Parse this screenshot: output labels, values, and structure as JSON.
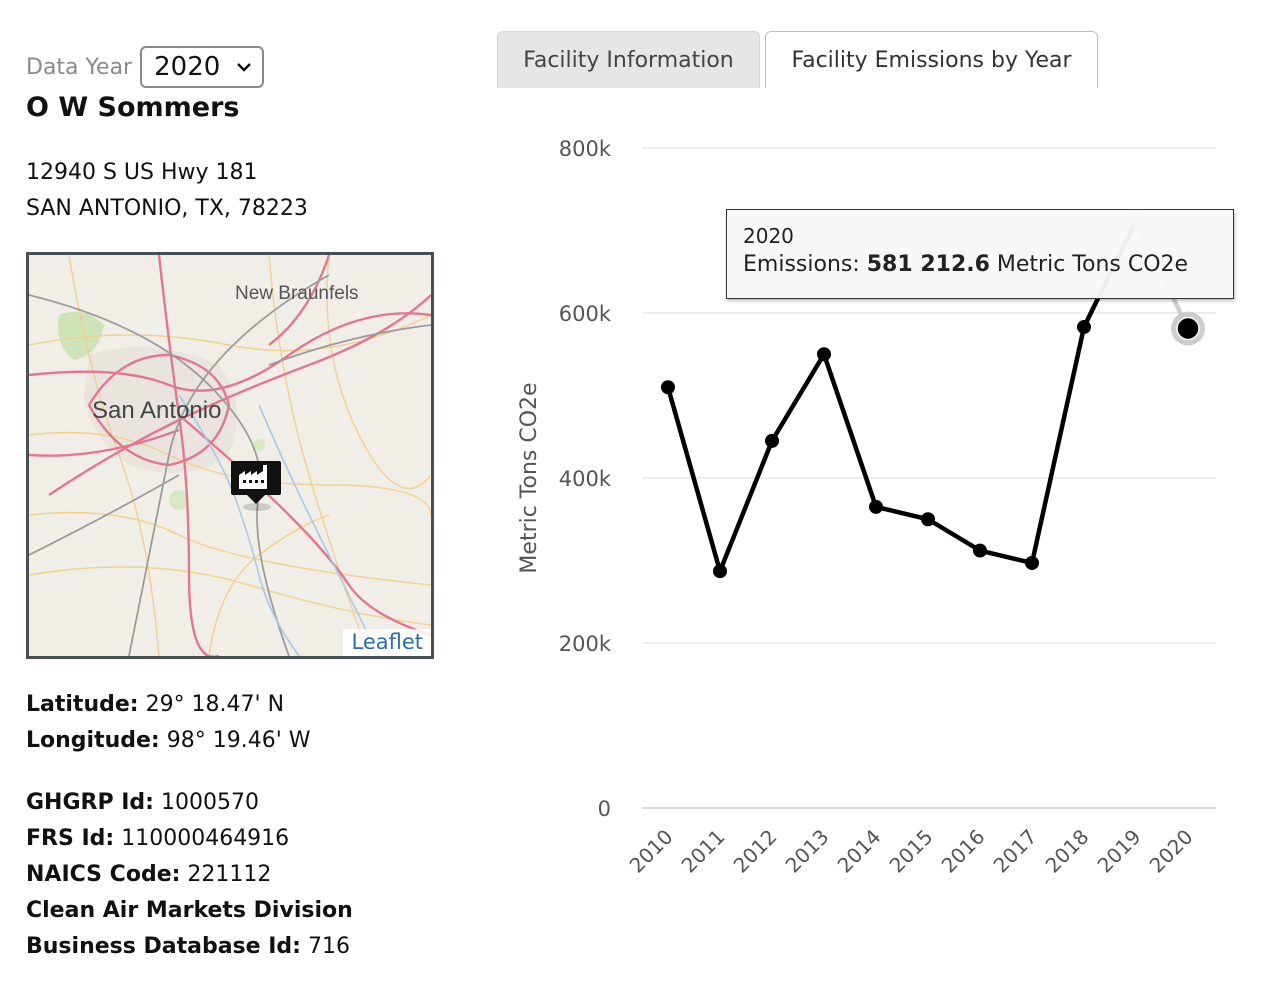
{
  "header": {
    "year_label": "Data Year",
    "year_value": "2020",
    "facility_name": "O W Sommers"
  },
  "address": {
    "line1": "12940 S US Hwy 181",
    "line2": "SAN ANTONIO, TX, 78223"
  },
  "map": {
    "city_label_1": "New Braunfels",
    "city_label_2": "San Antonio",
    "attribution": "Leaflet",
    "marker_icon": "factory-marker-icon"
  },
  "location": {
    "lat_label": "Latitude:",
    "lat_value": " 29° 18.47' N",
    "lon_label": "Longitude:",
    "lon_value": " 98° 19.46' W"
  },
  "ids": {
    "ghgrp_label": "GHGRP Id:",
    "ghgrp_value": " 1000570",
    "frs_label": "FRS Id:",
    "frs_value": " 110000464916",
    "naics_label": "NAICS Code:",
    "naics_value": " 221112",
    "camd_label": "Clean Air Markets Division",
    "bizdb_label": "Business Database Id:",
    "bizdb_value": " 716"
  },
  "tabs": [
    {
      "label": "Facility Information",
      "active": false
    },
    {
      "label": "Facility Emissions by Year",
      "active": true
    }
  ],
  "tooltip": {
    "year": "2020",
    "prefix": "Emissions: ",
    "value": "581 212.6",
    "suffix": " Metric Tons CO2e"
  },
  "chart_data": {
    "type": "line",
    "title": "",
    "xlabel": "",
    "ylabel": "Metric Tons CO2e",
    "x": [
      "2010",
      "2011",
      "2012",
      "2013",
      "2014",
      "2015",
      "2016",
      "2017",
      "2018",
      "2019",
      "2020"
    ],
    "series": [
      {
        "values": [
          510000,
          287000,
          445000,
          550000,
          365000,
          350000,
          312000,
          297000,
          583000,
          712000,
          581212.6
        ]
      }
    ],
    "ylim": [
      0,
      800000
    ],
    "yticks": [
      0,
      200000,
      400000,
      600000,
      800000
    ],
    "ytick_labels": [
      "0",
      "200k",
      "400k",
      "600k",
      "800k"
    ],
    "highlighted_index": 10,
    "grid": true,
    "line_color": "#000000"
  }
}
